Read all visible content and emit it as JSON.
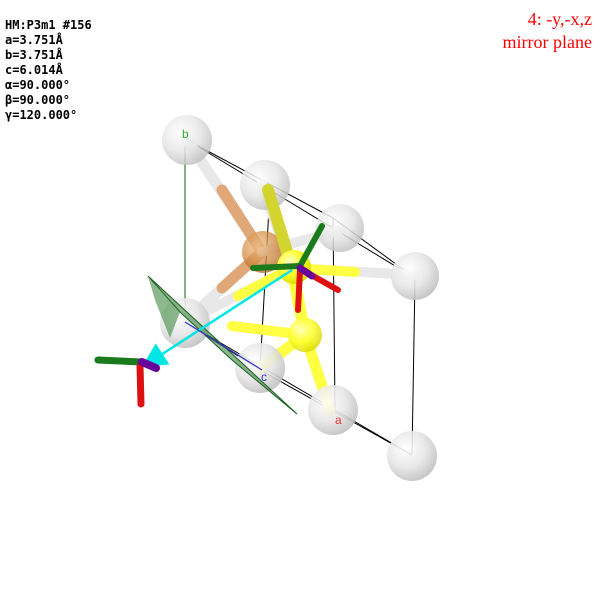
{
  "cell_info": {
    "space_group": "HM:P3m1 #156",
    "a": "a=3.751Å",
    "b": "b=3.751Å",
    "c": "c=6.014Å",
    "alpha": "α=90.000°",
    "beta": "β=90.000°",
    "gamma": "γ=120.000°"
  },
  "symmetry_operation": {
    "label": "4: -y,-x,z",
    "description": "mirror plane",
    "color": "#ff0000"
  },
  "axes": {
    "a_label": "a",
    "b_label": "b",
    "c_label": "c",
    "a_color": "#ff3333",
    "b_color": "#33aa33",
    "c_color": "#3333cc"
  },
  "colors": {
    "atom_white": "#e8e8e8",
    "atom_yellow": "#ffff33",
    "atom_orange": "#d08840",
    "mirror_plane": "#2e7d32",
    "arrow": "#00e5e5"
  }
}
